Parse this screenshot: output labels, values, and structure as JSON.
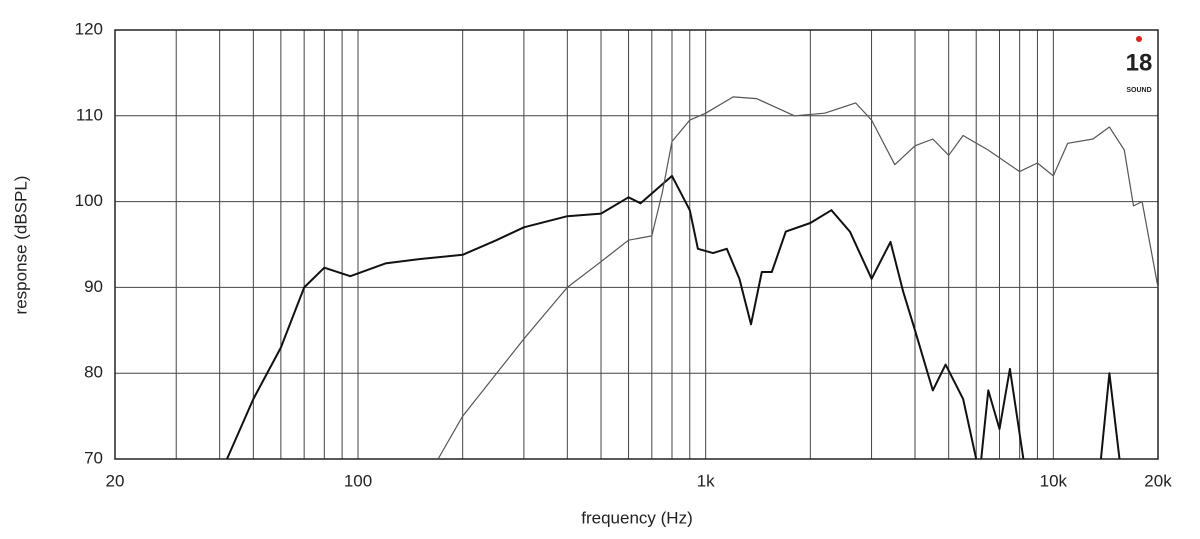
{
  "chart_data": {
    "type": "line",
    "x_label": "frequency (Hz)",
    "y_label": "response (dBSPL)",
    "xscale": "log",
    "xlim": [
      20,
      20000
    ],
    "ylim": [
      70,
      120
    ],
    "xticks": [
      20,
      100,
      {
        "value": 1000,
        "label": "1k"
      },
      {
        "value": 10000,
        "label": "10k"
      },
      {
        "value": 20000,
        "label": "20k"
      }
    ],
    "xgrid": [
      30,
      40,
      50,
      60,
      70,
      80,
      90,
      200,
      300,
      400,
      500,
      600,
      700,
      800,
      900,
      2000,
      3000,
      4000,
      5000,
      6000,
      7000,
      8000,
      9000
    ],
    "yticks": [
      70,
      80,
      90,
      100,
      110,
      120
    ],
    "grid": true,
    "logo": {
      "mark": "18",
      "text": "SOUND"
    },
    "series": [
      {
        "color": "#111111",
        "width": 2,
        "x": [
          42,
          50,
          60,
          70,
          80,
          95,
          120,
          150,
          200,
          250,
          300,
          400,
          500,
          600,
          650,
          800,
          900,
          950,
          1050,
          1150,
          1250,
          1350,
          1450,
          1550,
          1700,
          2000,
          2300,
          2600,
          3000,
          3400,
          3700,
          4000,
          4500,
          4900,
          5500,
          6000,
          6100,
          6200,
          6500,
          7000,
          7500,
          8200,
          8400,
          13700,
          14500,
          15500
        ],
        "values": [
          70,
          77,
          83,
          90,
          92.3,
          91.3,
          92.8,
          93.3,
          93.8,
          95.5,
          97,
          98.3,
          98.6,
          100.5,
          99.8,
          103,
          99,
          94.5,
          94,
          94.5,
          91,
          85.7,
          91.8,
          91.8,
          96.5,
          97.5,
          99,
          96.5,
          91,
          95.3,
          89.5,
          85,
          78,
          81,
          77,
          70,
          null,
          70,
          78,
          73.5,
          80.5,
          70,
          null,
          70,
          80,
          70
        ]
      },
      {
        "color": "#555555",
        "width": 1.2,
        "x": [
          170,
          200,
          300,
          400,
          500,
          600,
          700,
          750,
          800,
          900,
          1000,
          1200,
          1400,
          1800,
          2200,
          2700,
          3000,
          3500,
          4000,
          4500,
          5000,
          5500,
          6500,
          8000,
          9000,
          10000,
          11000,
          13000,
          14500,
          16000,
          17000,
          18000,
          20000
        ],
        "values": [
          70,
          75,
          84,
          90,
          93,
          95.5,
          96,
          101,
          107,
          109.5,
          110.3,
          112.2,
          112,
          110,
          110.3,
          111.5,
          109.5,
          104.3,
          106.5,
          107.3,
          105.4,
          107.7,
          106,
          103.5,
          104.5,
          103,
          106.8,
          107.3,
          108.7,
          106,
          99.5,
          100,
          90
        ]
      }
    ]
  }
}
